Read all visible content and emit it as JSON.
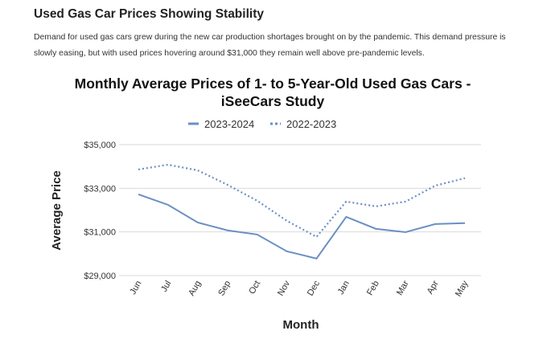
{
  "article": {
    "heading": "Used Gas Car Prices Showing Stability",
    "paragraph": "Demand for used gas cars grew during the new car production shortages brought on by the pandemic. This demand pressure is slowly easing, but with used prices hovering around $31,000 they remain well above pre-pandemic levels."
  },
  "chart_data": {
    "type": "line",
    "title_line1": "Monthly Average Prices of 1- to 5-Year-Old Used Gas Cars -",
    "title_line2": "iSeeCars Study",
    "xlabel": "Month",
    "ylabel": "Average Price",
    "categories": [
      "Jun",
      "Jul",
      "Aug",
      "Sep",
      "Oct",
      "Nov",
      "Dec",
      "Jan",
      "Feb",
      "Mar",
      "Apr",
      "May"
    ],
    "ylim": [
      29000,
      35000
    ],
    "yticks": [
      "$29,000",
      "$31,000",
      "$33,000",
      "$35,000"
    ],
    "grid": true,
    "legend_position": "top",
    "series": [
      {
        "name": "2023-2024",
        "style": "solid",
        "color": "#6a8fc4",
        "values": [
          32720,
          32240,
          31430,
          31070,
          30880,
          30110,
          29780,
          31690,
          31140,
          30990,
          31360,
          31400
        ]
      },
      {
        "name": "2022-2023",
        "style": "dotted",
        "color": "#6a8fc4",
        "values": [
          33860,
          34080,
          33820,
          33160,
          32430,
          31510,
          30770,
          32390,
          32170,
          32390,
          33120,
          33460
        ]
      }
    ]
  }
}
